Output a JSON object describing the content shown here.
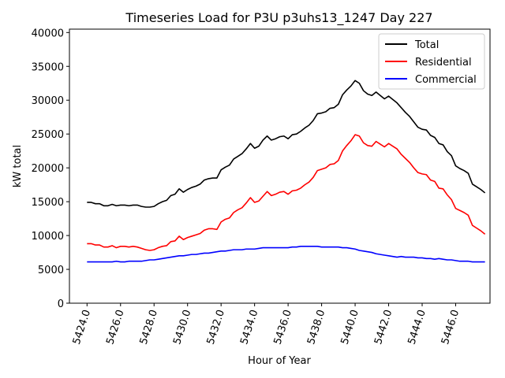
{
  "chart_data": {
    "type": "line",
    "title": "Timeseries Load for P3U p3uhs13_1247  Day 227",
    "xlabel": "Hour of Year",
    "ylabel": "kW total",
    "xlim": [
      5422.95,
      5448.05
    ],
    "ylim": [
      0,
      40500
    ],
    "x_ticks": [
      5424,
      5426,
      5428,
      5430,
      5432,
      5434,
      5436,
      5438,
      5440,
      5442,
      5444,
      5446
    ],
    "x_tick_labels": [
      "5424.0",
      "5426.0",
      "5428.0",
      "5430.0",
      "5432.0",
      "5434.0",
      "5436.0",
      "5438.0",
      "5440.0",
      "5442.0",
      "5444.0",
      "5446.0"
    ],
    "y_ticks": [
      0,
      5000,
      10000,
      15000,
      20000,
      25000,
      30000,
      35000,
      40000
    ],
    "y_tick_labels": [
      "0",
      "5000",
      "10000",
      "15000",
      "20000",
      "25000",
      "30000",
      "35000",
      "40000"
    ],
    "legend_position": "top-right",
    "x": [
      5424.0,
      5424.25,
      5424.5,
      5424.75,
      5425.0,
      5425.25,
      5425.5,
      5425.75,
      5426.0,
      5426.25,
      5426.5,
      5426.75,
      5427.0,
      5427.25,
      5427.5,
      5427.75,
      5428.0,
      5428.25,
      5428.5,
      5428.75,
      5429.0,
      5429.25,
      5429.5,
      5429.75,
      5430.0,
      5430.25,
      5430.5,
      5430.75,
      5431.0,
      5431.25,
      5431.5,
      5431.75,
      5432.0,
      5432.25,
      5432.5,
      5432.75,
      5433.0,
      5433.25,
      5433.5,
      5433.75,
      5434.0,
      5434.25,
      5434.5,
      5434.75,
      5435.0,
      5435.25,
      5435.5,
      5435.75,
      5436.0,
      5436.25,
      5436.5,
      5436.75,
      5437.0,
      5437.25,
      5437.5,
      5437.75,
      5438.0,
      5438.25,
      5438.5,
      5438.75,
      5439.0,
      5439.25,
      5439.5,
      5439.75,
      5440.0,
      5440.25,
      5440.5,
      5440.75,
      5441.0,
      5441.25,
      5441.5,
      5441.75,
      5442.0,
      5442.25,
      5442.5,
      5442.75,
      5443.0,
      5443.25,
      5443.5,
      5443.75,
      5444.0,
      5444.25,
      5444.5,
      5444.75,
      5445.0,
      5445.25,
      5445.5,
      5445.75,
      5446.0,
      5446.25,
      5446.5,
      5446.75,
      5447.0,
      5447.25,
      5447.5,
      5447.75
    ],
    "series": [
      {
        "name": "Total",
        "color": "#000000",
        "values": [
          14900,
          14900,
          14700,
          14700,
          14400,
          14400,
          14600,
          14400,
          14500,
          14500,
          14400,
          14500,
          14500,
          14300,
          14200,
          14200,
          14300,
          14700,
          15000,
          15200,
          15900,
          16100,
          16900,
          16400,
          16800,
          17100,
          17300,
          17600,
          18200,
          18400,
          18500,
          18500,
          19700,
          20100,
          20400,
          21300,
          21700,
          22100,
          22800,
          23600,
          22900,
          23200,
          24100,
          24700,
          24100,
          24300,
          24600,
          24700,
          24300,
          24900,
          25000,
          25400,
          25900,
          26300,
          27000,
          28000,
          28100,
          28300,
          28800,
          28900,
          29400,
          30800,
          31500,
          32100,
          32900,
          32500,
          31400,
          30900,
          30700,
          31200,
          30700,
          30200,
          30600,
          30100,
          29600,
          28900,
          28200,
          27600,
          26800,
          26000,
          25700,
          25600,
          24800,
          24500,
          23600,
          23400,
          22400,
          21800,
          20300,
          19900,
          19600,
          19200,
          17600,
          17200,
          16800,
          16300
        ]
      },
      {
        "name": "Residential",
        "color": "#ff0000",
        "values": [
          8800,
          8800,
          8600,
          8600,
          8300,
          8300,
          8500,
          8200,
          8400,
          8400,
          8300,
          8400,
          8300,
          8100,
          7900,
          7800,
          7900,
          8200,
          8400,
          8500,
          9100,
          9200,
          9900,
          9400,
          9700,
          9900,
          10100,
          10300,
          10800,
          11000,
          11000,
          10900,
          12000,
          12400,
          12600,
          13400,
          13800,
          14100,
          14800,
          15600,
          14900,
          15100,
          15800,
          16500,
          15900,
          16100,
          16400,
          16500,
          16100,
          16600,
          16700,
          17000,
          17500,
          17900,
          18600,
          19600,
          19800,
          20000,
          20500,
          20600,
          21100,
          22500,
          23300,
          24000,
          24900,
          24700,
          23700,
          23300,
          23200,
          23900,
          23500,
          23100,
          23600,
          23200,
          22800,
          22000,
          21400,
          20800,
          20000,
          19300,
          19100,
          19000,
          18200,
          18000,
          17000,
          16900,
          16000,
          15300,
          14000,
          13700,
          13400,
          13000,
          11500,
          11100,
          10700,
          10200
        ]
      },
      {
        "name": "Commercial",
        "color": "#0000ff",
        "values": [
          6100,
          6100,
          6100,
          6100,
          6100,
          6100,
          6100,
          6200,
          6100,
          6100,
          6200,
          6200,
          6200,
          6200,
          6300,
          6400,
          6400,
          6500,
          6600,
          6700,
          6800,
          6900,
          7000,
          7000,
          7100,
          7200,
          7200,
          7300,
          7400,
          7400,
          7500,
          7600,
          7700,
          7700,
          7800,
          7900,
          7900,
          7900,
          8000,
          8000,
          8000,
          8100,
          8200,
          8200,
          8200,
          8200,
          8200,
          8200,
          8200,
          8300,
          8300,
          8400,
          8400,
          8400,
          8400,
          8400,
          8300,
          8300,
          8300,
          8300,
          8300,
          8200,
          8200,
          8100,
          8000,
          7800,
          7700,
          7600,
          7500,
          7300,
          7200,
          7100,
          7000,
          6900,
          6800,
          6900,
          6800,
          6800,
          6800,
          6700,
          6700,
          6600,
          6600,
          6500,
          6600,
          6500,
          6400,
          6400,
          6300,
          6200,
          6200,
          6200,
          6100,
          6100,
          6100,
          6100
        ]
      }
    ]
  }
}
